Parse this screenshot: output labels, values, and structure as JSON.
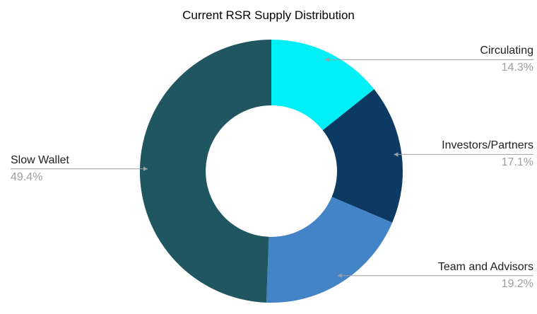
{
  "title": "Current RSR Supply Distribution",
  "colors": {
    "title_text": "#000000",
    "label_text": "#212121",
    "percent_text": "#9E9E9E",
    "callout_line": "#9E9E9E",
    "background": "#FFFFFF"
  },
  "chart_data": {
    "type": "pie",
    "title": "Current RSR Supply Distribution",
    "donut": true,
    "hole_ratio": 0.5,
    "start_angle_deg": 0,
    "direction": "clockwise",
    "legend_position": "labeled-callouts",
    "slices": [
      {
        "label": "Circulating",
        "value_pct": 14.3,
        "pct_label": "14.3%",
        "color": "#00EEF5",
        "label_side": "right"
      },
      {
        "label": "Investors/Partners",
        "value_pct": 17.1,
        "pct_label": "17.1%",
        "color": "#0C3A63",
        "label_side": "right"
      },
      {
        "label": "Team and Advisors",
        "value_pct": 19.2,
        "pct_label": "19.2%",
        "color": "#4384C6",
        "label_side": "right"
      },
      {
        "label": "Slow Wallet",
        "value_pct": 49.4,
        "pct_label": "49.4%",
        "color": "#20565F",
        "label_side": "left"
      }
    ]
  }
}
